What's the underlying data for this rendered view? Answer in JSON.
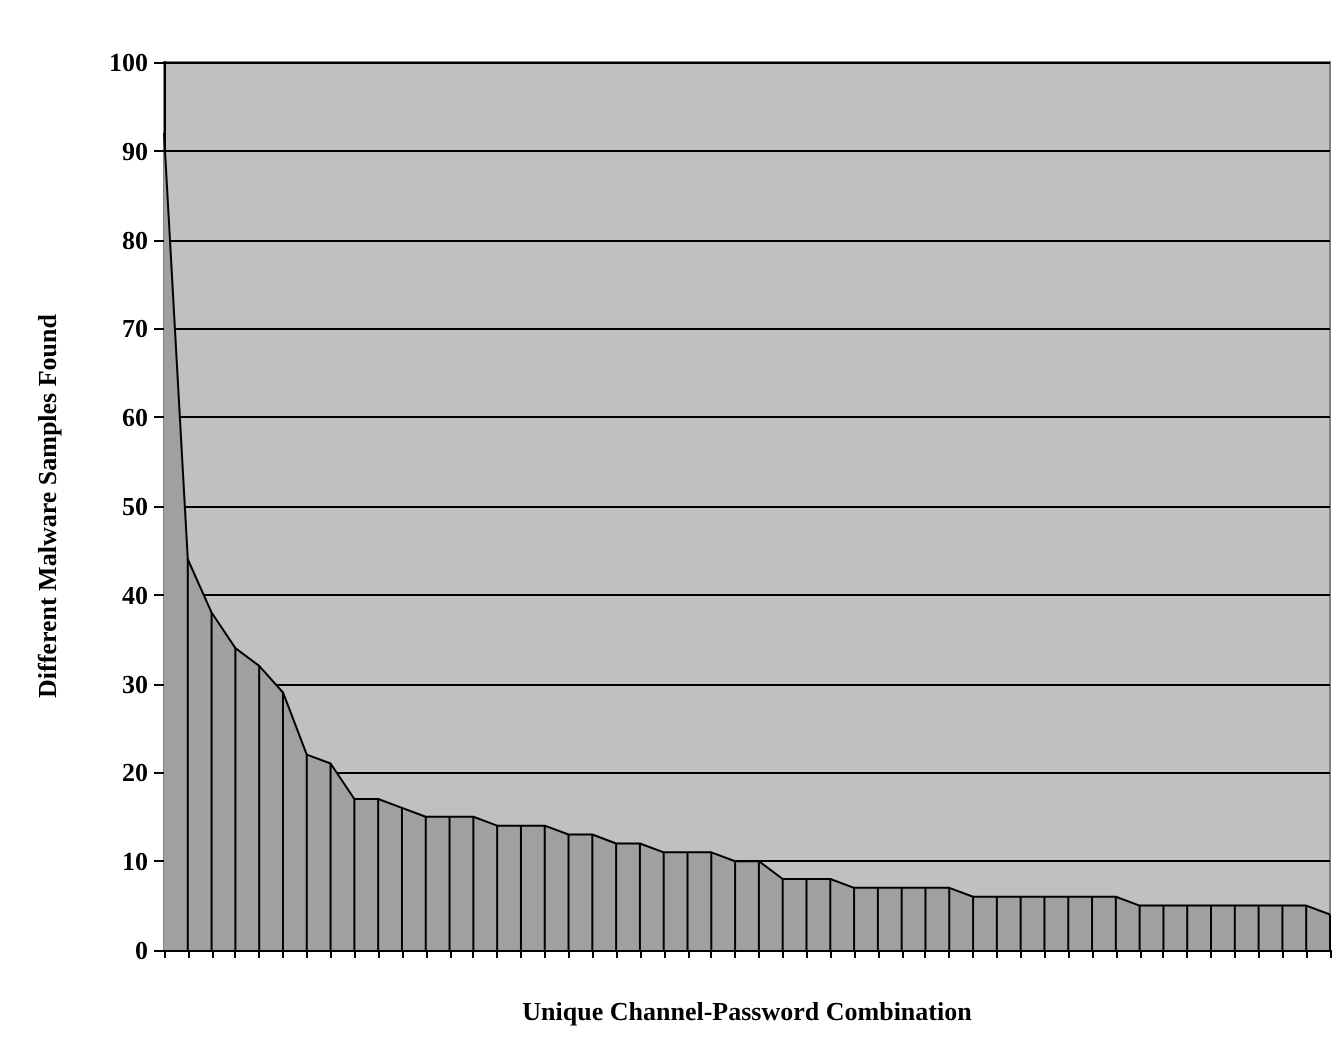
{
  "chart_data": {
    "type": "area",
    "xlabel": "Unique Channel-Password Combination",
    "ylabel": "Different Malware Samples Found",
    "categories": [
      null,
      null,
      null,
      null,
      null,
      null,
      null,
      null,
      null,
      null,
      null,
      null,
      null,
      null,
      null,
      null,
      null,
      null,
      null,
      null,
      null,
      null,
      null,
      null,
      null,
      null,
      null,
      null,
      null,
      null,
      null,
      null,
      null,
      null,
      null,
      null,
      null,
      null,
      null,
      null,
      null,
      null,
      null,
      null,
      null,
      null,
      null,
      null,
      null,
      null
    ],
    "series": [
      {
        "color": "#a0a0a0",
        "values": [
          92,
          44,
          38,
          34,
          32,
          29,
          22,
          21,
          17,
          17,
          16,
          15,
          15,
          15,
          14,
          14,
          14,
          13,
          13,
          12,
          12,
          11,
          11,
          11,
          10,
          10,
          8,
          8,
          8,
          7,
          7,
          7,
          7,
          7,
          6,
          6,
          6,
          6,
          6,
          6,
          6,
          5,
          5,
          5,
          5,
          5,
          5,
          5,
          5,
          4
        ]
      }
    ],
    "ylim": [
      0,
      100
    ],
    "yticks": [
      0,
      10,
      20,
      30,
      40,
      50,
      60,
      70,
      80,
      90,
      100
    ],
    "grid": "y",
    "marker": "none"
  }
}
